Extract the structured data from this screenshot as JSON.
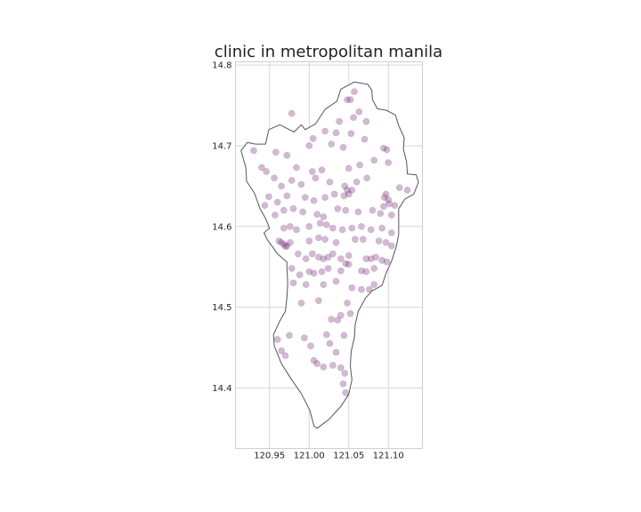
{
  "chart_data": {
    "type": "scatter",
    "title": "clinic in metropolitan manila",
    "xlabel": "",
    "ylabel": "",
    "xlim": [
      120.907,
      121.143
    ],
    "ylim": [
      14.325,
      14.804
    ],
    "grid": true,
    "x_ticks": [
      {
        "value": 120.95,
        "label": "120.95"
      },
      {
        "value": 121.0,
        "label": "121.00"
      },
      {
        "value": 121.05,
        "label": "121.05"
      },
      {
        "value": 121.1,
        "label": "121.10"
      }
    ],
    "y_ticks": [
      {
        "value": 14.4,
        "label": "14.4"
      },
      {
        "value": 14.5,
        "label": "14.5"
      },
      {
        "value": 14.6,
        "label": "14.6"
      },
      {
        "value": 14.7,
        "label": "14.7"
      },
      {
        "value": 14.8,
        "label": "14.8"
      }
    ],
    "marker_color": "#7b3a7e",
    "marker_alpha": 0.35,
    "outline_color": "#555555",
    "boundary": [
      [
        121.057,
        14.779
      ],
      [
        121.074,
        14.776
      ],
      [
        121.079,
        14.769
      ],
      [
        121.08,
        14.757
      ],
      [
        121.086,
        14.746
      ],
      [
        121.097,
        14.744
      ],
      [
        121.109,
        14.738
      ],
      [
        121.113,
        14.725
      ],
      [
        121.12,
        14.71
      ],
      [
        121.119,
        14.696
      ],
      [
        121.123,
        14.68
      ],
      [
        121.124,
        14.665
      ],
      [
        121.135,
        14.664
      ],
      [
        121.138,
        14.655
      ],
      [
        121.132,
        14.64
      ],
      [
        121.121,
        14.634
      ],
      [
        121.113,
        14.622
      ],
      [
        121.113,
        14.606
      ],
      [
        121.113,
        14.59
      ],
      [
        121.11,
        14.575
      ],
      [
        121.104,
        14.557
      ],
      [
        121.097,
        14.542
      ],
      [
        121.092,
        14.527
      ],
      [
        121.079,
        14.52
      ],
      [
        121.071,
        14.511
      ],
      [
        121.062,
        14.495
      ],
      [
        121.058,
        14.478
      ],
      [
        121.057,
        14.462
      ],
      [
        121.053,
        14.445
      ],
      [
        121.052,
        14.427
      ],
      [
        121.054,
        14.41
      ],
      [
        121.05,
        14.392
      ],
      [
        121.04,
        14.377
      ],
      [
        121.025,
        14.361
      ],
      [
        121.01,
        14.35
      ],
      [
        121.006,
        14.353
      ],
      [
        121.001,
        14.372
      ],
      [
        120.99,
        14.393
      ],
      [
        120.978,
        14.41
      ],
      [
        120.965,
        14.43
      ],
      [
        120.956,
        14.452
      ],
      [
        120.955,
        14.466
      ],
      [
        120.962,
        14.481
      ],
      [
        120.97,
        14.495
      ],
      [
        120.972,
        14.512
      ],
      [
        120.973,
        14.53
      ],
      [
        120.972,
        14.548
      ],
      [
        120.972,
        14.556
      ],
      [
        120.96,
        14.566
      ],
      [
        120.947,
        14.584
      ],
      [
        120.943,
        14.592
      ],
      [
        120.95,
        14.598
      ],
      [
        120.945,
        14.61
      ],
      [
        120.938,
        14.622
      ],
      [
        120.931,
        14.641
      ],
      [
        120.921,
        14.656
      ],
      [
        120.92,
        14.673
      ],
      [
        120.914,
        14.694
      ],
      [
        120.922,
        14.704
      ],
      [
        120.932,
        14.702
      ],
      [
        120.945,
        14.702
      ],
      [
        120.949,
        14.72
      ],
      [
        120.963,
        14.726
      ],
      [
        120.975,
        14.72
      ],
      [
        120.981,
        14.717
      ],
      [
        120.99,
        14.726
      ],
      [
        120.995,
        14.72
      ],
      [
        121.008,
        14.727
      ],
      [
        121.02,
        14.745
      ],
      [
        121.035,
        14.755
      ],
      [
        121.04,
        14.77
      ],
      [
        121.057,
        14.779
      ]
    ],
    "points": [
      [
        121.057,
        14.767
      ],
      [
        121.048,
        14.757
      ],
      [
        121.052,
        14.757
      ],
      [
        121.063,
        14.742
      ],
      [
        121.056,
        14.735
      ],
      [
        121.072,
        14.73
      ],
      [
        121.038,
        14.73
      ],
      [
        120.978,
        14.74
      ],
      [
        121.005,
        14.709
      ],
      [
        121.02,
        14.718
      ],
      [
        121.034,
        14.716
      ],
      [
        121.053,
        14.715
      ],
      [
        121.07,
        14.708
      ],
      [
        121.094,
        14.697
      ],
      [
        121.098,
        14.695
      ],
      [
        120.93,
        14.694
      ],
      [
        120.958,
        14.692
      ],
      [
        120.972,
        14.688
      ],
      [
        121.0,
        14.7
      ],
      [
        121.028,
        14.702
      ],
      [
        121.043,
        14.698
      ],
      [
        121.082,
        14.682
      ],
      [
        120.984,
        14.673
      ],
      [
        121.004,
        14.668
      ],
      [
        121.016,
        14.67
      ],
      [
        121.05,
        14.672
      ],
      [
        121.064,
        14.676
      ],
      [
        121.1,
        14.679
      ],
      [
        120.94,
        14.673
      ],
      [
        120.946,
        14.668
      ],
      [
        120.956,
        14.66
      ],
      [
        120.965,
        14.65
      ],
      [
        120.978,
        14.657
      ],
      [
        120.99,
        14.652
      ],
      [
        121.008,
        14.66
      ],
      [
        121.026,
        14.655
      ],
      [
        121.045,
        14.65
      ],
      [
        121.06,
        14.655
      ],
      [
        121.073,
        14.66
      ],
      [
        121.114,
        14.648
      ],
      [
        121.124,
        14.645
      ],
      [
        121.097,
        14.64
      ],
      [
        121.1,
        14.633
      ],
      [
        121.101,
        14.628
      ],
      [
        121.095,
        14.636
      ],
      [
        121.094,
        14.625
      ],
      [
        121.048,
        14.645
      ],
      [
        121.05,
        14.64
      ],
      [
        121.044,
        14.638
      ],
      [
        121.054,
        14.645
      ],
      [
        121.032,
        14.64
      ],
      [
        121.02,
        14.636
      ],
      [
        121.006,
        14.632
      ],
      [
        120.995,
        14.636
      ],
      [
        120.972,
        14.638
      ],
      [
        120.96,
        14.63
      ],
      [
        120.949,
        14.637
      ],
      [
        120.944,
        14.626
      ],
      [
        120.957,
        14.614
      ],
      [
        120.968,
        14.62
      ],
      [
        120.98,
        14.622
      ],
      [
        120.992,
        14.618
      ],
      [
        121.01,
        14.615
      ],
      [
        121.018,
        14.612
      ],
      [
        121.036,
        14.622
      ],
      [
        121.046,
        14.62
      ],
      [
        121.062,
        14.618
      ],
      [
        121.08,
        14.62
      ],
      [
        121.09,
        14.616
      ],
      [
        121.104,
        14.614
      ],
      [
        121.108,
        14.626
      ],
      [
        120.968,
        14.598
      ],
      [
        120.976,
        14.6
      ],
      [
        120.984,
        14.596
      ],
      [
        121.0,
        14.6
      ],
      [
        121.014,
        14.604
      ],
      [
        121.022,
        14.602
      ],
      [
        121.03,
        14.598
      ],
      [
        121.042,
        14.596
      ],
      [
        121.054,
        14.598
      ],
      [
        121.066,
        14.6
      ],
      [
        121.078,
        14.596
      ],
      [
        121.092,
        14.598
      ],
      [
        121.104,
        14.592
      ],
      [
        120.962,
        14.582
      ],
      [
        120.965,
        14.58
      ],
      [
        120.968,
        14.578
      ],
      [
        120.972,
        14.576
      ],
      [
        120.976,
        14.58
      ],
      [
        120.97,
        14.575
      ],
      [
        121.0,
        14.582
      ],
      [
        121.012,
        14.586
      ],
      [
        121.02,
        14.584
      ],
      [
        121.034,
        14.58
      ],
      [
        121.058,
        14.584
      ],
      [
        121.068,
        14.584
      ],
      [
        121.088,
        14.582
      ],
      [
        121.097,
        14.58
      ],
      [
        121.104,
        14.576
      ],
      [
        120.986,
        14.566
      ],
      [
        120.996,
        14.56
      ],
      [
        121.004,
        14.566
      ],
      [
        121.012,
        14.562
      ],
      [
        121.018,
        14.56
      ],
      [
        121.024,
        14.562
      ],
      [
        121.03,
        14.566
      ],
      [
        121.04,
        14.56
      ],
      [
        121.05,
        14.564
      ],
      [
        121.072,
        14.56
      ],
      [
        121.078,
        14.56
      ],
      [
        121.084,
        14.562
      ],
      [
        121.092,
        14.558
      ],
      [
        121.098,
        14.556
      ],
      [
        120.978,
        14.548
      ],
      [
        120.988,
        14.54
      ],
      [
        121.0,
        14.544
      ],
      [
        121.006,
        14.542
      ],
      [
        121.016,
        14.544
      ],
      [
        121.024,
        14.548
      ],
      [
        121.04,
        14.545
      ],
      [
        121.046,
        14.554
      ],
      [
        121.05,
        14.553
      ],
      [
        121.066,
        14.545
      ],
      [
        121.072,
        14.544
      ],
      [
        121.082,
        14.548
      ],
      [
        120.98,
        14.53
      ],
      [
        120.996,
        14.528
      ],
      [
        121.018,
        14.528
      ],
      [
        121.034,
        14.532
      ],
      [
        121.054,
        14.524
      ],
      [
        121.066,
        14.522
      ],
      [
        121.076,
        14.522
      ],
      [
        121.082,
        14.528
      ],
      [
        120.99,
        14.505
      ],
      [
        121.012,
        14.508
      ],
      [
        121.048,
        14.505
      ],
      [
        121.04,
        14.49
      ],
      [
        121.052,
        14.492
      ],
      [
        121.028,
        14.485
      ],
      [
        121.036,
        14.484
      ],
      [
        120.994,
        14.462
      ],
      [
        120.975,
        14.465
      ],
      [
        121.022,
        14.466
      ],
      [
        121.044,
        14.465
      ],
      [
        120.96,
        14.46
      ],
      [
        120.965,
        14.446
      ],
      [
        120.97,
        14.44
      ],
      [
        121.002,
        14.452
      ],
      [
        121.026,
        14.455
      ],
      [
        121.034,
        14.444
      ],
      [
        121.006,
        14.434
      ],
      [
        121.01,
        14.43
      ],
      [
        121.018,
        14.426
      ],
      [
        121.03,
        14.428
      ],
      [
        121.04,
        14.425
      ],
      [
        121.045,
        14.418
      ],
      [
        121.043,
        14.405
      ],
      [
        121.046,
        14.394
      ]
    ]
  }
}
